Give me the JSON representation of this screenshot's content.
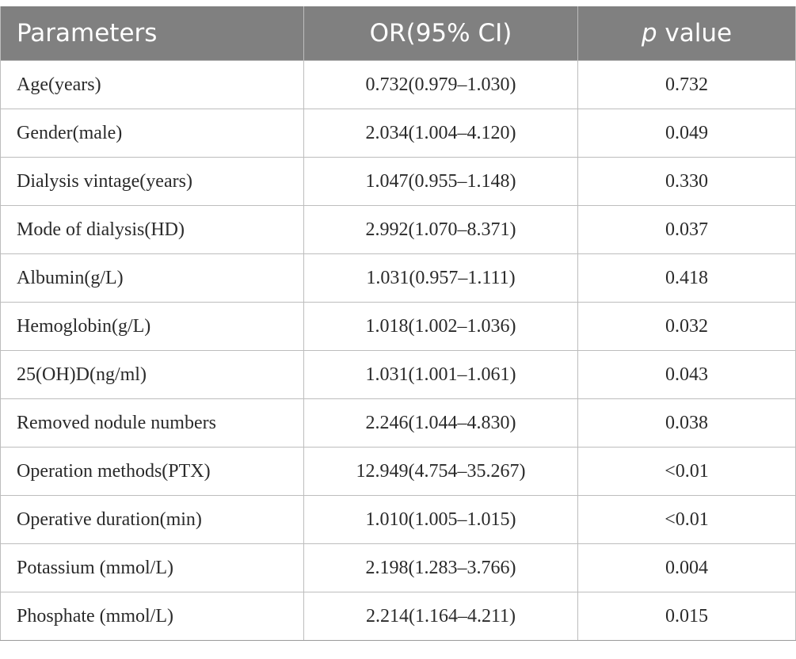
{
  "table": {
    "header": {
      "parameters": "Parameters",
      "or": "OR(95% CI)",
      "p_italic": "p",
      "p_rest": " value"
    },
    "rows": [
      {
        "parameter": "Age(years)",
        "or": "0.732(0.979–1.030)",
        "p": "0.732"
      },
      {
        "parameter": "Gender(male)",
        "or": "2.034(1.004–4.120)",
        "p": "0.049"
      },
      {
        "parameter": "Dialysis vintage(years)",
        "or": "1.047(0.955–1.148)",
        "p": "0.330"
      },
      {
        "parameter": "Mode of dialysis(HD)",
        "or": "2.992(1.070–8.371)",
        "p": "0.037"
      },
      {
        "parameter": "Albumin(g/L)",
        "or": "1.031(0.957–1.111)",
        "p": "0.418"
      },
      {
        "parameter": "Hemoglobin(g/L)",
        "or": "1.018(1.002–1.036)",
        "p": "0.032"
      },
      {
        "parameter": "25(OH)D(ng/ml)",
        "or": "1.031(1.001–1.061)",
        "p": "0.043"
      },
      {
        "parameter": "Removed nodule numbers",
        "or": "2.246(1.044–4.830)",
        "p": "0.038"
      },
      {
        "parameter": "Operation methods(PTX)",
        "or": "12.949(4.754–35.267)",
        "p": "<0.01"
      },
      {
        "parameter": "Operative duration(min)",
        "or": "1.010(1.005–1.015)",
        "p": "<0.01"
      },
      {
        "parameter": "Potassium (mmol/L)",
        "or": "2.198(1.283–3.766)",
        "p": "0.004"
      },
      {
        "parameter": "Phosphate (mmol/L)",
        "or": "2.214(1.164–4.211)",
        "p": "0.015"
      }
    ]
  },
  "colors": {
    "header_bg": "#808080",
    "header_text": "#ffffff",
    "grid": "#bdbdbd",
    "body_text": "#2a2a2a"
  }
}
